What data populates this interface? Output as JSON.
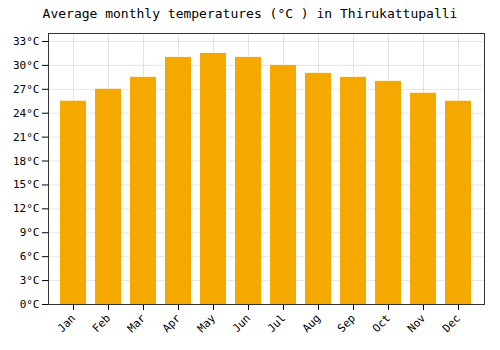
{
  "chart_data": {
    "type": "bar",
    "title": "Average monthly temperatures (°C ) in Thirukattupalli",
    "categories": [
      "Jan",
      "Feb",
      "Mar",
      "Apr",
      "May",
      "Jun",
      "Jul",
      "Aug",
      "Sep",
      "Oct",
      "Nov",
      "Dec"
    ],
    "values": [
      25.5,
      27.0,
      28.5,
      31.0,
      31.5,
      31.0,
      30.0,
      29.0,
      28.5,
      28.0,
      26.5,
      25.5
    ],
    "color": "#F5A800",
    "ylim": [
      0,
      34
    ],
    "yticks": [
      {
        "value": 0,
        "label": "0°C"
      },
      {
        "value": 3,
        "label": "3°C"
      },
      {
        "value": 6,
        "label": "6°C"
      },
      {
        "value": 9,
        "label": "9°C"
      },
      {
        "value": 12,
        "label": "12°C"
      },
      {
        "value": 15,
        "label": "15°C"
      },
      {
        "value": 18,
        "label": "18°C"
      },
      {
        "value": 21,
        "label": "21°C"
      },
      {
        "value": 24,
        "label": "24°C"
      },
      {
        "value": 27,
        "label": "27°C"
      },
      {
        "value": 30,
        "label": "30°C"
      },
      {
        "value": 33,
        "label": "33°C"
      }
    ],
    "grid": true
  }
}
